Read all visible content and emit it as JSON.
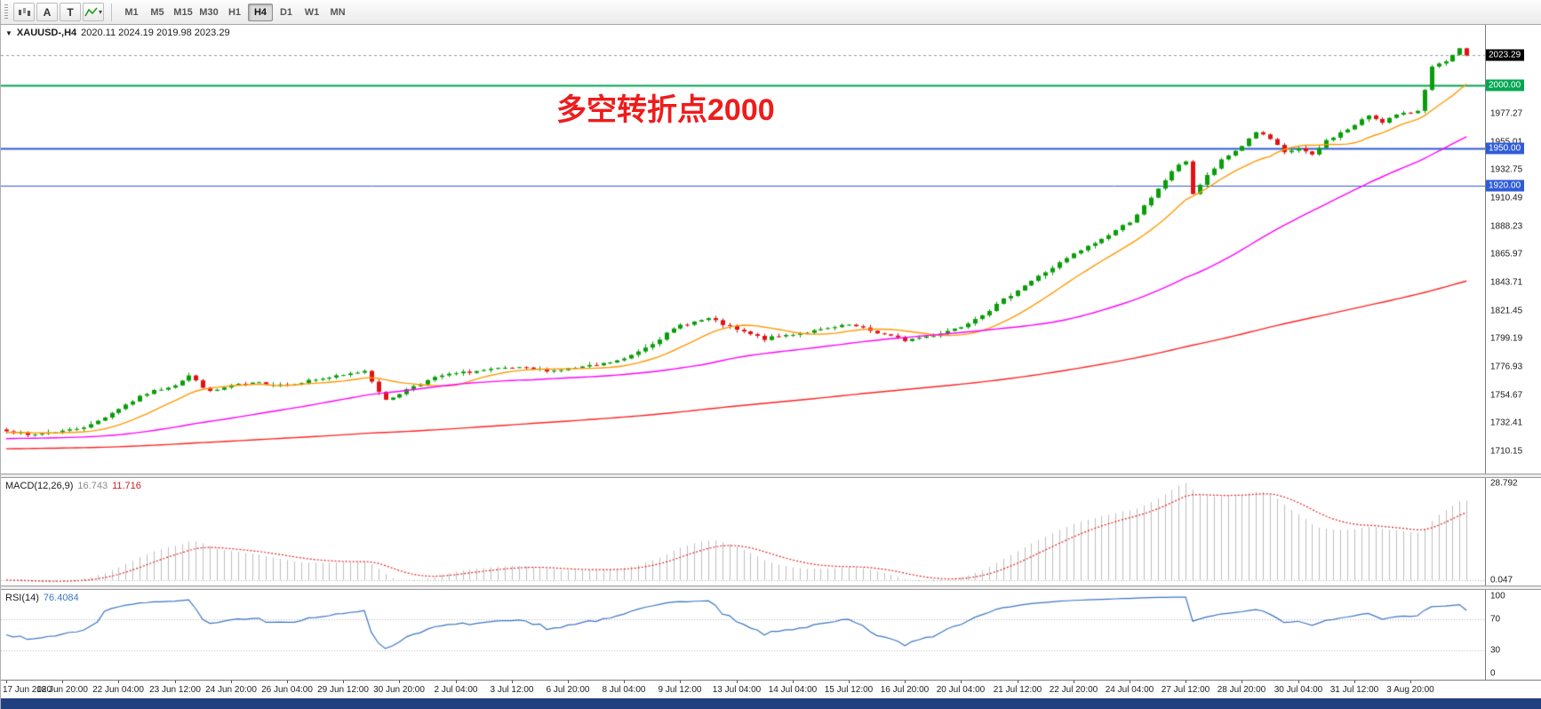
{
  "toolbar": {
    "buttons": [
      {
        "id": "text-a",
        "label": "A"
      },
      {
        "id": "text-t",
        "label": "T"
      }
    ],
    "timeframes": [
      {
        "label": "M1",
        "active": false
      },
      {
        "label": "M5",
        "active": false
      },
      {
        "label": "M15",
        "active": false
      },
      {
        "label": "M30",
        "active": false
      },
      {
        "label": "H1",
        "active": false
      },
      {
        "label": "H4",
        "active": true
      },
      {
        "label": "D1",
        "active": false
      },
      {
        "label": "W1",
        "active": false
      },
      {
        "label": "MN",
        "active": false
      }
    ]
  },
  "header": {
    "symbol_title": "XAUUSD-,H4",
    "ohlc": "2020.11 2024.19 2019.98 2023.29"
  },
  "annotation": {
    "text": "多空转折点2000",
    "color": "#ee1c1c"
  },
  "price_scale": {
    "current": {
      "label": "2023.29",
      "value": 2023.29,
      "bg": "#000000"
    },
    "levels": [
      {
        "label": "2000.00",
        "value": 2000.0,
        "bg": "#00a651",
        "width": 2
      },
      {
        "label": "1950.00",
        "value": 1950.0,
        "bg": "#2f5bd7",
        "width": 2
      },
      {
        "label": "1920.00",
        "value": 1920.0,
        "bg": "#2f5bd7",
        "width": 1
      }
    ],
    "ticks": [
      {
        "label": "1977.27",
        "value": 1977.27
      },
      {
        "label": "1955.01",
        "value": 1955.01
      },
      {
        "label": "1932.75",
        "value": 1932.75
      },
      {
        "label": "1910.49",
        "value": 1910.49
      },
      {
        "label": "1888.23",
        "value": 1888.23
      },
      {
        "label": "1865.97",
        "value": 1865.97
      },
      {
        "label": "1843.71",
        "value": 1843.71
      },
      {
        "label": "1821.45",
        "value": 1821.45
      },
      {
        "label": "1799.19",
        "value": 1799.19
      },
      {
        "label": "1776.93",
        "value": 1776.93
      },
      {
        "label": "1754.67",
        "value": 1754.67
      },
      {
        "label": "1732.41",
        "value": 1732.41
      },
      {
        "label": "1710.15",
        "value": 1710.15
      }
    ]
  },
  "macd_panel": {
    "title": "MACD(12,26,9)",
    "main_value": "16.743",
    "signal_value": "11.716",
    "ticks": [
      {
        "label": "28.792",
        "value": 28.792
      },
      {
        "label": "0.047",
        "value": 0.047
      }
    ]
  },
  "rsi_panel": {
    "title": "RSI(14)",
    "value": "76.4084",
    "ticks": [
      {
        "label": "100",
        "value": 100
      },
      {
        "label": "70",
        "value": 70
      },
      {
        "label": "30",
        "value": 30
      },
      {
        "label": "0",
        "value": 0
      }
    ]
  },
  "time_axis": {
    "step": 8,
    "labels": [
      "17 Jun 2020",
      "18 Jun 20:00",
      "22 Jun 04:00",
      "23 Jun 12:00",
      "24 Jun 20:00",
      "26 Jun 04:00",
      "29 Jun 12:00",
      "30 Jun 20:00",
      "2 Jul 04:00",
      "3 Jul 12:00",
      "6 Jul 20:00",
      "8 Jul 04:00",
      "9 Jul 12:00",
      "13 Jul 04:00",
      "14 Jul 04:00",
      "15 Jul 12:00",
      "16 Jul 20:00",
      "20 Jul 04:00",
      "21 Jul 12:00",
      "22 Jul 20:00",
      "24 Jul 04:00",
      "27 Jul 12:00",
      "28 Jul 20:00",
      "30 Jul 04:00",
      "31 Jul 12:00",
      "3 Aug 20:00"
    ]
  },
  "chart_data": {
    "type": "candlestick",
    "symbol": "XAUUSD-",
    "timeframe": "H4",
    "title": "XAUUSD-,H4 2020.11 2024.19 2019.98 2023.29",
    "num_candles": 209,
    "last_close": 2023.29,
    "price_range": [
      1692.5,
      2047.5
    ],
    "anchors": [
      [
        0,
        1727
      ],
      [
        3,
        1722.5
      ],
      [
        6,
        1725
      ],
      [
        9,
        1727
      ],
      [
        12,
        1731
      ],
      [
        16,
        1744
      ],
      [
        20,
        1756
      ],
      [
        24,
        1763
      ],
      [
        26,
        1770
      ],
      [
        29,
        1757
      ],
      [
        32,
        1762
      ],
      [
        36,
        1764
      ],
      [
        40,
        1763
      ],
      [
        44,
        1767
      ],
      [
        48,
        1770
      ],
      [
        51,
        1774
      ],
      [
        54,
        1750
      ],
      [
        58,
        1762
      ],
      [
        62,
        1770
      ],
      [
        66,
        1773
      ],
      [
        72,
        1776
      ],
      [
        78,
        1774
      ],
      [
        84,
        1778
      ],
      [
        88,
        1783
      ],
      [
        92,
        1796
      ],
      [
        96,
        1810
      ],
      [
        100,
        1815
      ],
      [
        104,
        1806
      ],
      [
        108,
        1799
      ],
      [
        112,
        1803
      ],
      [
        116,
        1806
      ],
      [
        120,
        1810
      ],
      [
        124,
        1804
      ],
      [
        128,
        1798
      ],
      [
        132,
        1802
      ],
      [
        136,
        1809
      ],
      [
        140,
        1822
      ],
      [
        144,
        1838
      ],
      [
        148,
        1852
      ],
      [
        152,
        1866
      ],
      [
        156,
        1878
      ],
      [
        160,
        1892
      ],
      [
        163,
        1910
      ],
      [
        166,
        1932
      ],
      [
        168,
        1940
      ],
      [
        169,
        1914
      ],
      [
        171,
        1928
      ],
      [
        173,
        1940
      ],
      [
        176,
        1952
      ],
      [
        178,
        1963
      ],
      [
        180,
        1957
      ],
      [
        182,
        1946
      ],
      [
        184,
        1950
      ],
      [
        186,
        1944
      ],
      [
        188,
        1956
      ],
      [
        192,
        1968
      ],
      [
        194,
        1976
      ],
      [
        196,
        1971
      ],
      [
        198,
        1976
      ],
      [
        200,
        1978
      ],
      [
        201,
        1980
      ],
      [
        203,
        2014
      ],
      [
        205,
        2018
      ],
      [
        207,
        2028
      ],
      [
        208,
        2023.29
      ]
    ],
    "moving_averages": [
      {
        "name": "MA fast",
        "period": 12,
        "color": "#ff9800",
        "backfill": 1725
      },
      {
        "name": "MA mid",
        "period": 48,
        "color": "#ff00ff",
        "backfill": 1720
      },
      {
        "name": "MA slow",
        "period": 170,
        "color": "#ff2222",
        "backfill": 1712
      }
    ],
    "macd": {
      "fast": 12,
      "slow": 26,
      "signal": 9,
      "histogram_color": "#bdbdbd",
      "signal_color": "#e02020",
      "range": [
        -1.6,
        30.3
      ]
    },
    "rsi": {
      "period": 14,
      "color": "#3a75c4",
      "levels": [
        70,
        30
      ],
      "range": [
        -8,
        108
      ]
    },
    "candle_up_color": "#0a9e0a",
    "candle_down_color": "#e21212",
    "hline_colors": {
      "pivot_2000": "#00a651",
      "support_1950": "#2f5bd7",
      "support_1920": "#2f5bd7"
    },
    "seed": 7,
    "noise": 1.1,
    "wick": 1.6
  }
}
